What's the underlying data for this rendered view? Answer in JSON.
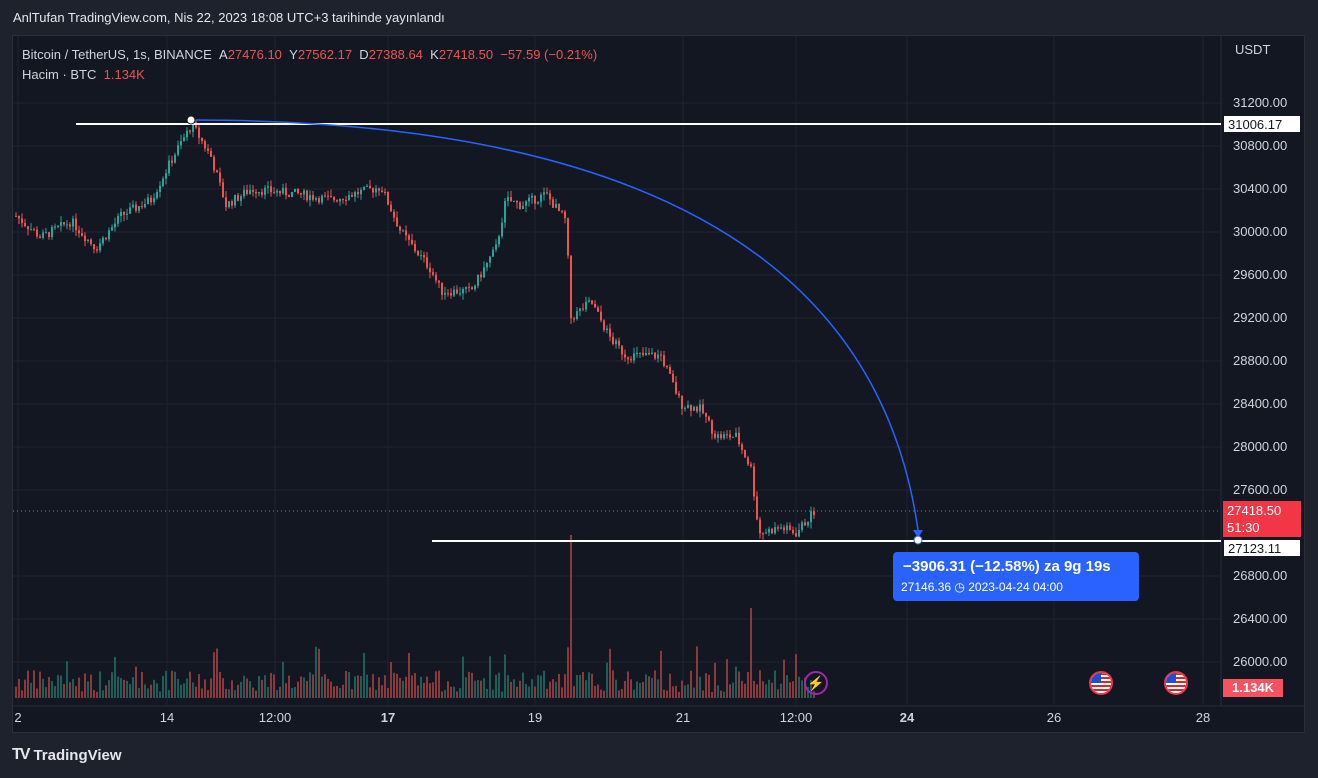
{
  "header": {
    "published_line": "AnlTufan TradingView.com, Nis 22, 2023 18:08 UTC+3 tarihinde yayınlandı"
  },
  "legend": {
    "symbol": "Bitcoin / TetherUS, 1s, BINANCE",
    "open_label": "A",
    "open": "27476.10",
    "high_label": "Y",
    "high": "27562.17",
    "low_label": "D",
    "low": "27388.64",
    "close_label": "K",
    "close": "27418.50",
    "change": "−57.59 (−0.21%)",
    "volume_label": "Hacim · BTC",
    "volume_value": "1.134K"
  },
  "price_axis": {
    "currency": "USDT",
    "ticks": [
      "31200.00",
      "30800.00",
      "30400.00",
      "30000.00",
      "29600.00",
      "29200.00",
      "28800.00",
      "28400.00",
      "28000.00",
      "27600.00",
      "26800.00",
      "26400.00",
      "26000.00"
    ],
    "tick_values": [
      31200,
      30800,
      30400,
      30000,
      29600,
      29200,
      28800,
      28400,
      28000,
      27600,
      26800,
      26400,
      26000
    ],
    "last_price_tag": "27418.50",
    "countdown_tag": "51:30",
    "line_top_tag": "31006.17",
    "line_bottom_tag": "27123.11",
    "volume_tag": "1.134K"
  },
  "time_axis": {
    "labels": [
      "2",
      "14",
      "12:00",
      "17",
      "19",
      "21",
      "12:00",
      "24",
      "26",
      "28"
    ],
    "bold": [
      false,
      false,
      false,
      true,
      false,
      false,
      false,
      true,
      false,
      false
    ]
  },
  "measure_callout": {
    "line1": "−3906.31 (−12.58%) za 9g 19s",
    "line2_price": "27146.36",
    "line2_date": "2023-04-24  04:00"
  },
  "colors": {
    "up": "#26a69a",
    "down": "#ef5350",
    "background": "#131722",
    "arc": "#2962ff"
  },
  "icons": [
    "us-flag-icon",
    "us-flag-icon",
    "flash-icon",
    "tradingview-logo-icon"
  ],
  "footer": {
    "brand": "TradingView"
  }
}
